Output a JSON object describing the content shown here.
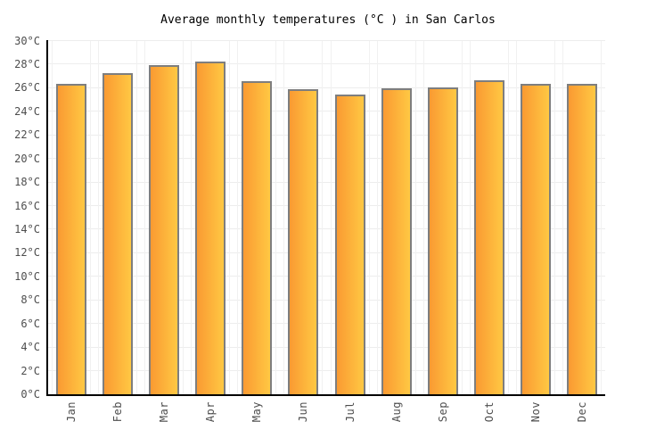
{
  "title": "Average monthly temperatures (°C ) in San Carlos",
  "chart_data": {
    "type": "bar",
    "title": "Average monthly temperatures (°C ) in San Carlos",
    "categories": [
      "Jan",
      "Feb",
      "Mar",
      "Apr",
      "May",
      "Jun",
      "Jul",
      "Aug",
      "Sep",
      "Oct",
      "Nov",
      "Dec"
    ],
    "values": [
      26.2,
      27.1,
      27.8,
      28.1,
      26.4,
      25.7,
      25.3,
      25.8,
      25.9,
      26.5,
      26.2,
      26.2
    ],
    "unit": "°C",
    "xlabel": "",
    "ylabel": "",
    "ylim": [
      0,
      30
    ],
    "ytick_step": 2,
    "ytick_suffix": "°C",
    "ytick_labels": [
      "0°C",
      "2°C",
      "4°C",
      "6°C",
      "8°C",
      "10°C",
      "12°C",
      "14°C",
      "16°C",
      "18°C",
      "20°C",
      "22°C",
      "24°C",
      "26°C",
      "28°C",
      "30°C"
    ],
    "grid": true,
    "legend_position": "none",
    "colors": {
      "bar_gradient_start": "#fa9a32",
      "bar_gradient_end": "#ffc843",
      "bar_border": "#7e7e7e",
      "gridline": "#ededed",
      "column_band_line": "#f1f1f1",
      "axis": "#000000",
      "tick_label": "#4d4d4d",
      "title": "#000000",
      "background": "#ffffff"
    }
  }
}
